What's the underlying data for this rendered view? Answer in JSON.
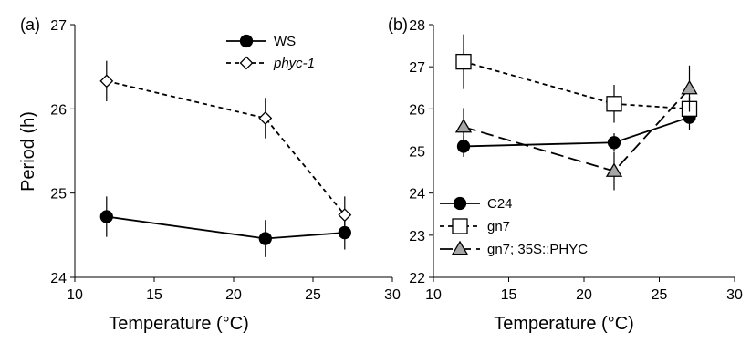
{
  "chart_data": [
    {
      "type": "line",
      "panel_label": "(a)",
      "xlabel": "Temperature (°C)",
      "ylabel": "Period (h)",
      "xlim": [
        10,
        30
      ],
      "ylim": [
        24,
        27
      ],
      "xticks": [
        "10",
        "15",
        "20",
        "25",
        "30"
      ],
      "yticks": [
        "24",
        "25",
        "26",
        "27"
      ],
      "legend_position": "top-right",
      "series": [
        {
          "name": "WS",
          "marker": "circle",
          "fill": "#000000",
          "dash": "solid",
          "x": [
            12,
            22,
            27
          ],
          "y": [
            24.72,
            24.46,
            24.53
          ],
          "err": [
            0.24,
            0.22,
            0.2
          ]
        },
        {
          "name": "phyc-1",
          "italic": true,
          "marker": "diamond",
          "fill": "#ffffff",
          "dash": "short",
          "x": [
            12,
            22,
            27
          ],
          "y": [
            26.33,
            25.89,
            24.74
          ],
          "err": [
            0.24,
            0.24,
            0.22
          ]
        }
      ]
    },
    {
      "type": "line",
      "panel_label": "(b)",
      "xlabel": "Temperature (°C)",
      "ylabel": "",
      "xlim": [
        10,
        30
      ],
      "ylim": [
        22,
        28
      ],
      "xticks": [
        "10",
        "15",
        "20",
        "25",
        "30"
      ],
      "yticks": [
        "22",
        "23",
        "24",
        "25",
        "26",
        "27",
        "28"
      ],
      "legend_position": "bottom-left",
      "series": [
        {
          "name": "C24",
          "marker": "circle",
          "fill": "#000000",
          "dash": "solid",
          "x": [
            12,
            22,
            27
          ],
          "y": [
            25.11,
            25.2,
            25.8
          ],
          "err": [
            0.25,
            0.22,
            0.3
          ]
        },
        {
          "name": "gn7",
          "marker": "square",
          "fill": "#ffffff",
          "dash": "short",
          "x": [
            12,
            22,
            27
          ],
          "y": [
            27.12,
            26.12,
            26.0
          ],
          "err": [
            0.65,
            0.45,
            0.3
          ]
        },
        {
          "name": "gn7; 35S::PHYC",
          "marker": "triangle",
          "fill": "#a6a6a6",
          "dash": "long",
          "x": [
            12,
            22,
            27
          ],
          "y": [
            25.57,
            24.52,
            26.48
          ],
          "err": [
            0.45,
            0.45,
            0.55
          ]
        }
      ]
    }
  ]
}
